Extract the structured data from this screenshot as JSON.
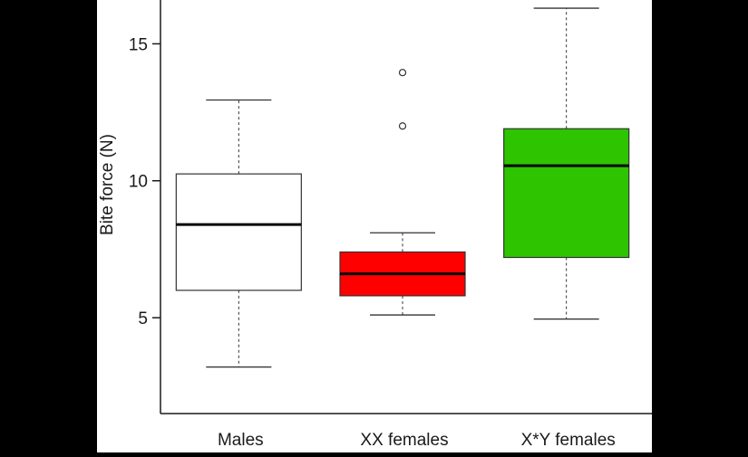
{
  "chart_data": {
    "type": "box",
    "title": "",
    "xlabel": "",
    "ylabel": "Bite force (N)",
    "ylim": [
      1.5,
      16.6
    ],
    "yticks": [
      5,
      10,
      15
    ],
    "grid": false,
    "categories": [
      "Males",
      "XX females",
      "X*Y females"
    ],
    "boxes": [
      {
        "category": "Males",
        "whisker_low": 3.2,
        "q1": 6.0,
        "median": 8.4,
        "q3": 10.25,
        "whisker_high": 12.95,
        "outliers": [],
        "color": "#ffffff"
      },
      {
        "category": "XX females",
        "whisker_low": 5.1,
        "q1": 5.8,
        "median": 6.6,
        "q3": 7.4,
        "whisker_high": 8.1,
        "outliers": [
          12.0,
          13.95
        ],
        "color": "#ff0000"
      },
      {
        "category": "X*Y females",
        "whisker_low": 4.95,
        "q1": 7.2,
        "median": 10.55,
        "q3": 11.9,
        "whisker_high": 16.3,
        "outliers": [],
        "color": "#2ec400"
      }
    ]
  },
  "colors": {
    "background": "#000000",
    "plot_background": "#ffffff",
    "axis": "#1a1a1a",
    "median": "#000000"
  }
}
